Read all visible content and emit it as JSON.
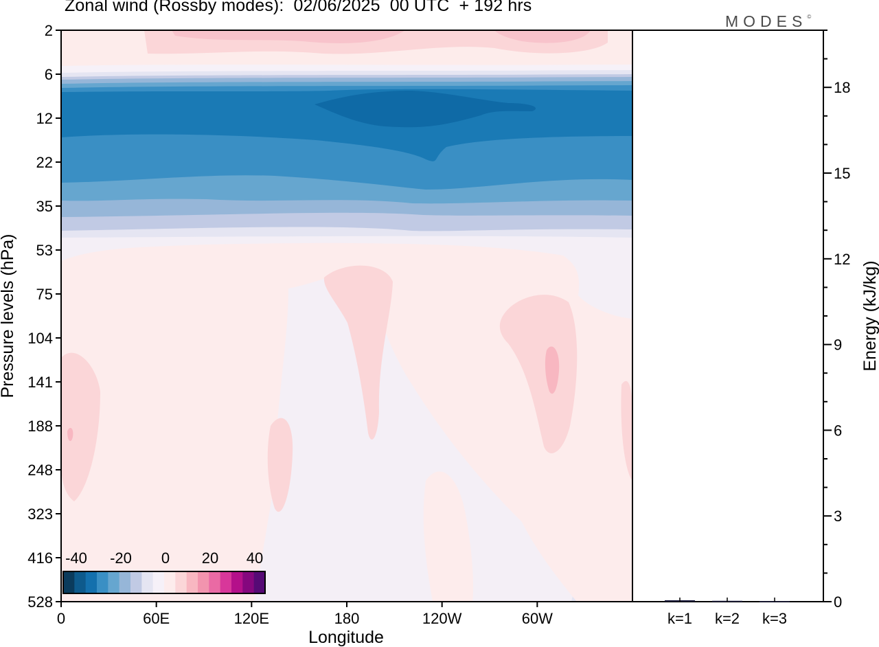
{
  "title": "Zonal wind (Rossby modes):  02/06/2025  00 UTC  + 192 hrs",
  "logo_text": "MODES",
  "logo_mark": "©",
  "chart_data": [
    {
      "type": "heatmap",
      "title": "Zonal wind (Rossby modes):  02/06/2025  00 UTC  + 192 hrs",
      "xlabel": "Longitude",
      "ylabel": "Pressure levels (hPa)",
      "x_tick_labels": [
        "0",
        "60E",
        "120E",
        "180",
        "120W",
        "60W"
      ],
      "x_tick_values_deg": [
        0,
        60,
        120,
        180,
        240,
        300
      ],
      "xlim_deg": [
        0,
        360
      ],
      "y_tick_labels": [
        "2",
        "6",
        "12",
        "22",
        "35",
        "53",
        "75",
        "104",
        "141",
        "188",
        "248",
        "323",
        "416",
        "528"
      ],
      "y_scale": "pressure levels (equally spaced, top = 2 hPa, bottom = 528 hPa)",
      "colorbar": {
        "tick_labels": [
          "-40",
          "-20",
          "0",
          "20",
          "40"
        ],
        "colors": [
          "#0b3b5c",
          "#0e5a8c",
          "#1470ad",
          "#3a8fc4",
          "#66a6cf",
          "#96b6d8",
          "#c1cae4",
          "#e5e5f2",
          "#f6f1f8",
          "#fdecec",
          "#fbd6d8",
          "#f8b7c1",
          "#f294ae",
          "#ea6aa4",
          "#d8379a",
          "#b4108a",
          "#85077e",
          "#560a75"
        ]
      },
      "bands": [
        {
          "level_range": [
            "2",
            "4"
          ],
          "value": "weak positive (0 to 10 m/s), small 10–15 m/s patches near 0–60E and 180–150W"
        },
        {
          "level_range": [
            "6",
            "8"
          ],
          "value": "negative, -5 to -25 m/s (easterly transition layer)"
        },
        {
          "level_range": [
            "8",
            "16"
          ],
          "value": "negative, -25 to -35 m/s (easterly jet)"
        },
        {
          "level_range": [
            "16",
            "28"
          ],
          "value": "negative, -15 to -25 m/s"
        },
        {
          "level_range": [
            "28",
            "45"
          ],
          "value": "negative, -5 to -15 m/s"
        },
        {
          "level_range": [
            "53",
            "528"
          ],
          "value": "weak, mostly -5 to +10 m/s with a negative blob near 100E (-10 m/s) and positive blobs near 150W and 75W (+10 to +15 m/s)"
        }
      ]
    },
    {
      "type": "bar",
      "categories": [
        "k=1",
        "k=2",
        "k=3"
      ],
      "values": [
        0.05,
        0.03,
        0.02
      ],
      "ylabel": "Energy (kJ/kg)",
      "ylim": [
        0,
        20
      ],
      "y_ticks": [
        0,
        3,
        6,
        9,
        12,
        15,
        18
      ],
      "y_tick_labels": [
        "0",
        "3",
        "6",
        "9",
        "12",
        "15",
        "18"
      ]
    }
  ]
}
